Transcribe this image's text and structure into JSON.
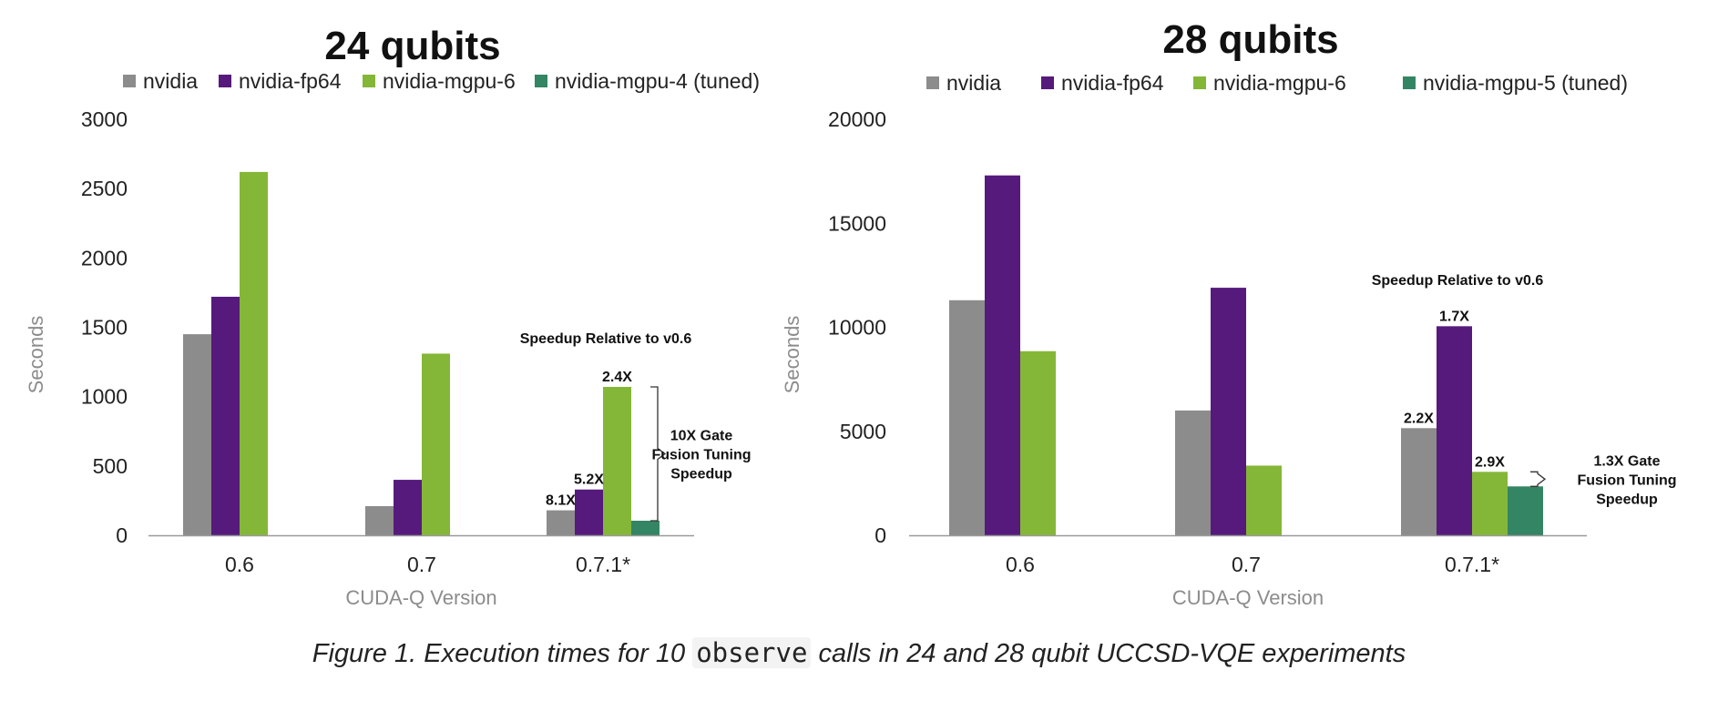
{
  "colors": {
    "nvidia": "#8c8c8c",
    "nvidia-fp64": "#561a7c",
    "nvidia-mgpu-6": "#84b737",
    "nvidia-mgpu-tuned": "#348564"
  },
  "chart_data": [
    {
      "type": "bar",
      "title": "24 qubits",
      "xlabel": "CUDA-Q Version",
      "ylabel": "Seconds",
      "categories": [
        "0.6",
        "0.7",
        "0.7.1*"
      ],
      "ylim": [
        0,
        3000
      ],
      "yticks": [
        0,
        500,
        1000,
        1500,
        2000,
        2500,
        3000
      ],
      "legend_placement": "top",
      "series": [
        {
          "name": "nvidia",
          "color": "#8c8c8c",
          "values": [
            1450,
            210,
            180
          ]
        },
        {
          "name": "nvidia-fp64",
          "color": "#561a7c",
          "values": [
            1720,
            400,
            330
          ]
        },
        {
          "name": "nvidia-mgpu-6",
          "color": "#84b737",
          "values": [
            2620,
            1310,
            1070
          ]
        },
        {
          "name": "nvidia-mgpu-4 (tuned)",
          "color": "#348564",
          "values": [
            null,
            null,
            105
          ]
        }
      ],
      "data_labels": [
        {
          "series": 0,
          "category": 2,
          "text": "8.1X"
        },
        {
          "series": 1,
          "category": 2,
          "text": "5.2X"
        },
        {
          "series": 2,
          "category": 2,
          "text": "2.4X"
        }
      ],
      "annotation_header": "Speedup Relative to v0.6",
      "bracket_label": [
        "10X Gate",
        "Fusion Tuning",
        "Speedup"
      ]
    },
    {
      "type": "bar",
      "title": "28 qubits",
      "xlabel": "CUDA-Q Version",
      "ylabel": "Seconds",
      "categories": [
        "0.6",
        "0.7",
        "0.7.1*"
      ],
      "ylim": [
        0,
        20000
      ],
      "yticks": [
        0,
        5000,
        10000,
        15000,
        20000
      ],
      "legend_placement": "top",
      "series": [
        {
          "name": "nvidia",
          "color": "#8c8c8c",
          "values": [
            11300,
            6000,
            5150
          ]
        },
        {
          "name": "nvidia-fp64",
          "color": "#561a7c",
          "values": [
            17300,
            11900,
            10050
          ]
        },
        {
          "name": "nvidia-mgpu-6",
          "color": "#84b737",
          "values": [
            8850,
            3350,
            3050
          ]
        },
        {
          "name": "nvidia-mgpu-5 (tuned)",
          "color": "#348564",
          "values": [
            null,
            null,
            2350
          ]
        }
      ],
      "data_labels": [
        {
          "series": 0,
          "category": 2,
          "text": "2.2X"
        },
        {
          "series": 1,
          "category": 2,
          "text": "1.7X"
        },
        {
          "series": 2,
          "category": 2,
          "text": "2.9X"
        }
      ],
      "annotation_header": "Speedup Relative to v0.6",
      "bracket_label": [
        "1.3X Gate",
        "Fusion Tuning",
        "Speedup"
      ]
    }
  ],
  "caption": {
    "prefix": "Figure 1. Execution times for 10 ",
    "code": "observe",
    "suffix": " calls in 24 and 28 qubit UCCSD-VQE experiments"
  }
}
